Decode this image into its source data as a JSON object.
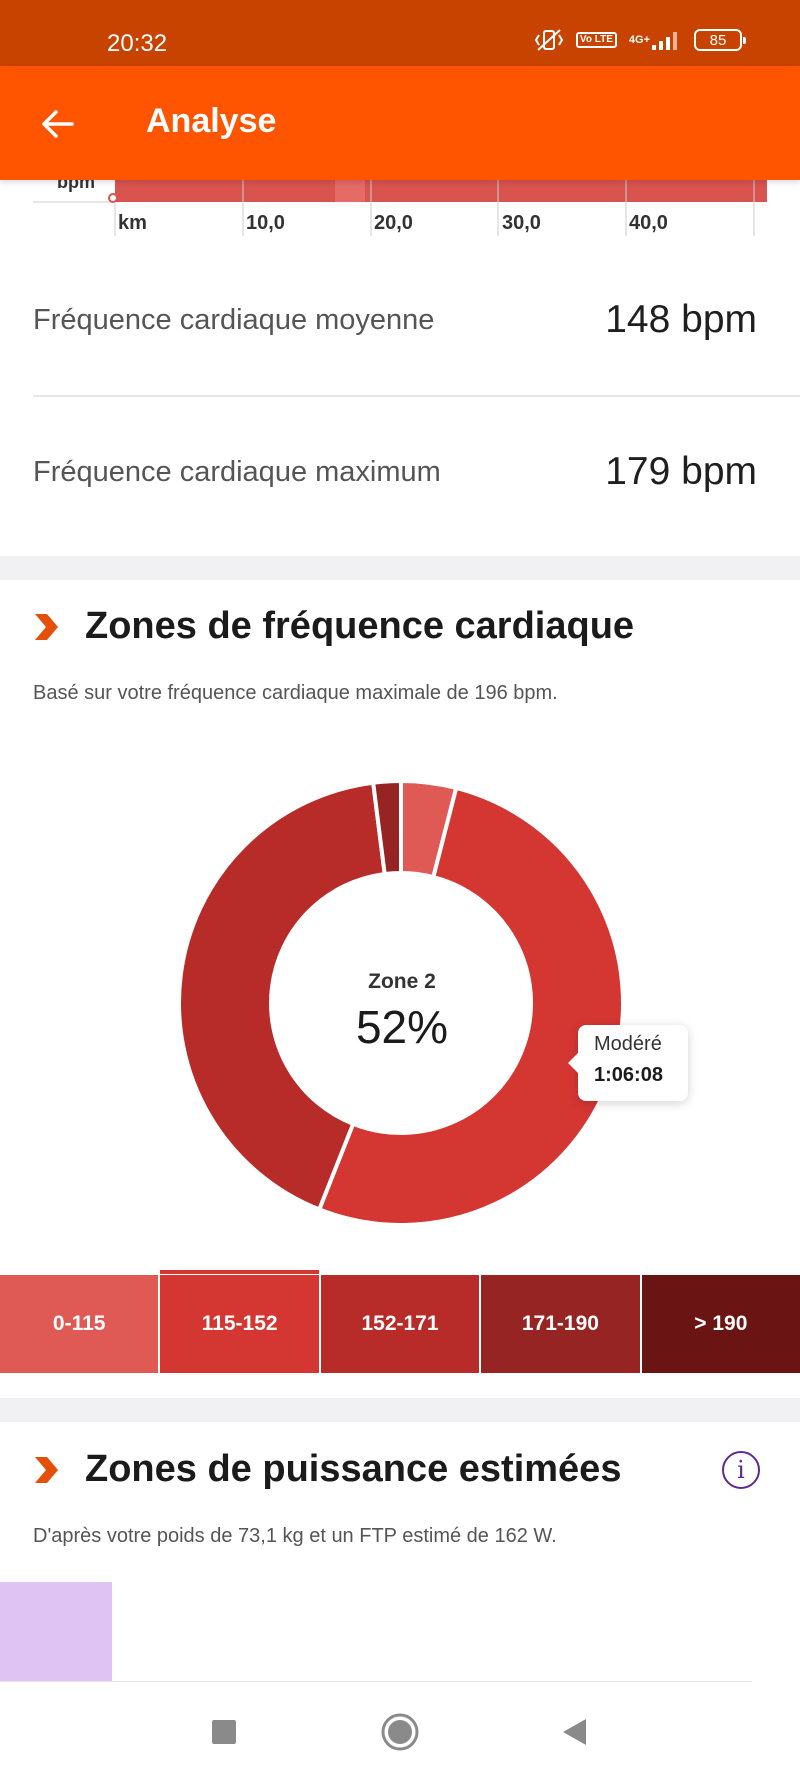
{
  "status_bar": {
    "time": "20:32",
    "volte": "Vo LTE",
    "network": "4G+",
    "battery": "85",
    "icons": [
      "vibrate-off-icon",
      "volte-icon",
      "signal-icon",
      "battery-icon"
    ]
  },
  "app_bar": {
    "title": "Analyse",
    "back_icon": "arrow-left-icon",
    "color": "#ff5500"
  },
  "mini_chart": {
    "y_unit": "bpm",
    "x_unit": "km",
    "x_ticks": [
      "10,0",
      "20,0",
      "30,0",
      "40,0"
    ]
  },
  "stats": [
    {
      "label": "Fréquence cardiaque moyenne",
      "value": "148 bpm"
    },
    {
      "label": "Fréquence cardiaque maximum",
      "value": "179 bpm"
    }
  ],
  "hr_zones": {
    "title": "Zones de fréquence cardiaque",
    "subtitle": "Basé sur votre fréquence cardiaque maximale de 196 bpm.",
    "center_label": "Zone 2",
    "center_value": "52%",
    "tooltip_label": "Modéré",
    "tooltip_time": "1:06:08",
    "tabs": [
      {
        "label": "0-115",
        "color": "#e05a55"
      },
      {
        "label": "115-152",
        "color": "#d43632",
        "selected": true
      },
      {
        "label": "152-171",
        "color": "#b72b28"
      },
      {
        "label": "171-190",
        "color": "#952423"
      },
      {
        "label": "> 190",
        "color": "#6b1414"
      }
    ]
  },
  "chart_data": {
    "type": "pie",
    "categories": [
      "0-115",
      "115-152",
      "152-171",
      "171-190",
      "> 190"
    ],
    "values": [
      4,
      52,
      42,
      2,
      0
    ],
    "colors": [
      "#e05a55",
      "#d43632",
      "#b72b28",
      "#952423",
      "#6b1414"
    ],
    "title": "",
    "donut": true
  },
  "power_zones": {
    "title": "Zones de puissance estimées",
    "subtitle": "D'après votre poids de 73,1 kg et un FTP estimé de 162 W.",
    "info_icon": "i",
    "bar_color": "#dfc4f3"
  },
  "nav_bar": {
    "icons": [
      "square-recents-icon",
      "circle-home-icon",
      "triangle-back-icon"
    ]
  }
}
